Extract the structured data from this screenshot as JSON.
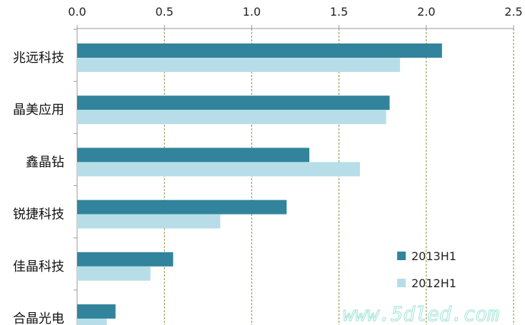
{
  "chart_data": {
    "type": "bar",
    "orientation": "horizontal",
    "categories": [
      "兆远科技",
      "晶美应用",
      "鑫晶钻",
      "锐捷科技",
      "佳晶科技",
      "合晶光电"
    ],
    "series": [
      {
        "name": "2013H1",
        "values": [
          2.09,
          1.79,
          1.33,
          1.2,
          0.55,
          0.22
        ],
        "color": "#31849b"
      },
      {
        "name": "2012H1",
        "values": [
          1.85,
          1.77,
          1.62,
          0.82,
          0.42,
          0.17
        ],
        "color": "#b7dee8"
      }
    ],
    "x_ticks": [
      "0.0",
      "0.5",
      "1.0",
      "1.5",
      "2.0",
      "2.5"
    ],
    "xlim": [
      0,
      2.5
    ],
    "x_axis_position": "top",
    "grid": "vertical dashed",
    "gridline_color": "#8a8a3a",
    "legend_placement": "bottom-right",
    "title": "",
    "xlabel": "",
    "ylabel": ""
  },
  "watermark": "www.5dled.com"
}
